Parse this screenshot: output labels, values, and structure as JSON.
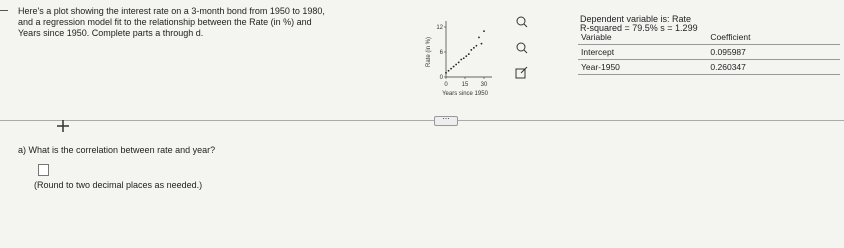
{
  "intro": [
    "Here's a plot showing the interest rate on a 3-month bond from 1950 to 1980,",
    "and a regression model fit to the relationship between the Rate (in %) and",
    "Years since 1950. Complete parts a through d."
  ],
  "plot": {
    "type": "scatter",
    "x": [
      0,
      2,
      4,
      6,
      8,
      10,
      12,
      14,
      16,
      18,
      20,
      22,
      24,
      26,
      28,
      30
    ],
    "y": [
      1,
      1.5,
      2,
      2.5,
      3,
      3.5,
      4.2,
      4.5,
      5,
      5.5,
      6.5,
      7,
      7.5,
      9.5,
      8,
      11
    ],
    "xlim": [
      0,
      30
    ],
    "ylim": [
      0,
      12
    ],
    "xticks": [
      0,
      15,
      30
    ],
    "yticks": [
      0,
      6,
      12
    ],
    "xlabel": "Years since 1950",
    "ylabel": "Rate (in %)"
  },
  "table": {
    "title": "Dependent variable is: Rate",
    "subtitle": "R-squared = 79.5%   s = 1.299",
    "columns": [
      "Variable",
      "Coefficient"
    ],
    "rows": [
      [
        "Intercept",
        "0.095987"
      ],
      [
        "Year-1950",
        "0.260347"
      ]
    ]
  },
  "question": "a) What is the correlation between rate and year?",
  "hint": "(Round to two decimal places as needed.)"
}
